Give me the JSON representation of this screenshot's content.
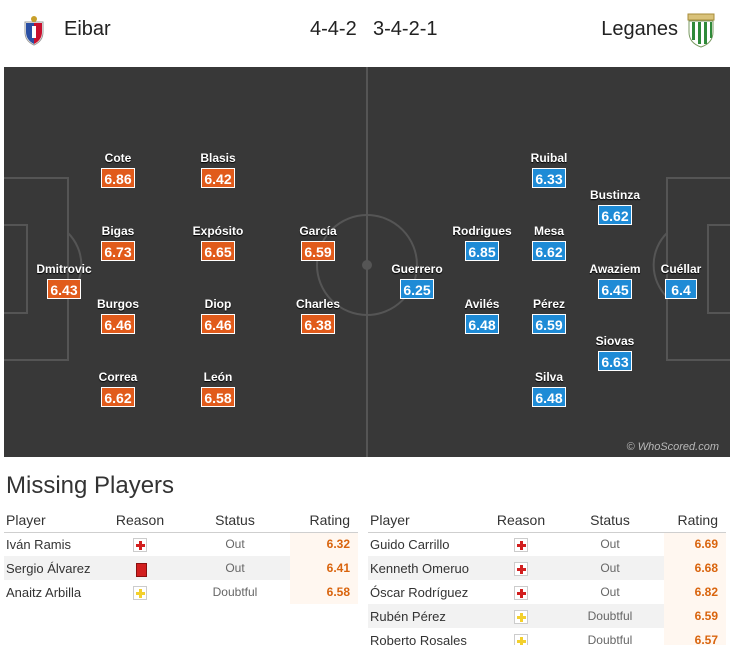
{
  "header": {
    "home_team": "Eibar",
    "away_team": "Leganes",
    "home_formation": "4-4-2",
    "away_formation": "3-4-2-1"
  },
  "pitch": {
    "watermark": "© WhoScored.com",
    "home_players": [
      {
        "name": "Dmitrovic",
        "rating": "6.43"
      },
      {
        "name": "Cote",
        "rating": "6.86"
      },
      {
        "name": "Bigas",
        "rating": "6.73"
      },
      {
        "name": "Burgos",
        "rating": "6.46"
      },
      {
        "name": "Correa",
        "rating": "6.62"
      },
      {
        "name": "Blasis",
        "rating": "6.42"
      },
      {
        "name": "Expósito",
        "rating": "6.65"
      },
      {
        "name": "Diop",
        "rating": "6.46"
      },
      {
        "name": "León",
        "rating": "6.58"
      },
      {
        "name": "García",
        "rating": "6.59"
      },
      {
        "name": "Charles",
        "rating": "6.38"
      }
    ],
    "away_players": [
      {
        "name": "Guerrero",
        "rating": "6.25"
      },
      {
        "name": "Rodrigues",
        "rating": "6.85"
      },
      {
        "name": "Avilés",
        "rating": "6.48"
      },
      {
        "name": "Ruibal",
        "rating": "6.33"
      },
      {
        "name": "Mesa",
        "rating": "6.62"
      },
      {
        "name": "Pérez",
        "rating": "6.59"
      },
      {
        "name": "Silva",
        "rating": "6.48"
      },
      {
        "name": "Bustinza",
        "rating": "6.62"
      },
      {
        "name": "Awaziem",
        "rating": "6.45"
      },
      {
        "name": "Siovas",
        "rating": "6.63"
      },
      {
        "name": "Cuéllar",
        "rating": "6.4"
      }
    ]
  },
  "missing": {
    "title": "Missing Players",
    "columns": {
      "player": "Player",
      "reason": "Reason",
      "status": "Status",
      "rating": "Rating"
    },
    "home": [
      {
        "player": "Iván Ramis",
        "reason_icon": "injury-icon",
        "status": "Out",
        "rating": "6.32"
      },
      {
        "player": "Sergio Álvarez",
        "reason_icon": "red-card-icon",
        "status": "Out",
        "rating": "6.41"
      },
      {
        "player": "Anaitz Arbilla",
        "reason_icon": "doubtful-icon",
        "status": "Doubtful",
        "rating": "6.58"
      }
    ],
    "away": [
      {
        "player": "Guido Carrillo",
        "reason_icon": "injury-icon",
        "status": "Out",
        "rating": "6.69"
      },
      {
        "player": "Kenneth Omeruo",
        "reason_icon": "injury-icon",
        "status": "Out",
        "rating": "6.68"
      },
      {
        "player": "Óscar Rodríguez",
        "reason_icon": "injury-icon",
        "status": "Out",
        "rating": "6.82"
      },
      {
        "player": "Rubén Pérez",
        "reason_icon": "doubtful-icon",
        "status": "Doubtful",
        "rating": "6.59"
      },
      {
        "player": "Roberto Rosales",
        "reason_icon": "doubtful-icon",
        "status": "Doubtful",
        "rating": "6.57"
      }
    ]
  },
  "colors": {
    "home": "#e15b1b",
    "away": "#1e8bd6",
    "pitch": "#383838"
  }
}
